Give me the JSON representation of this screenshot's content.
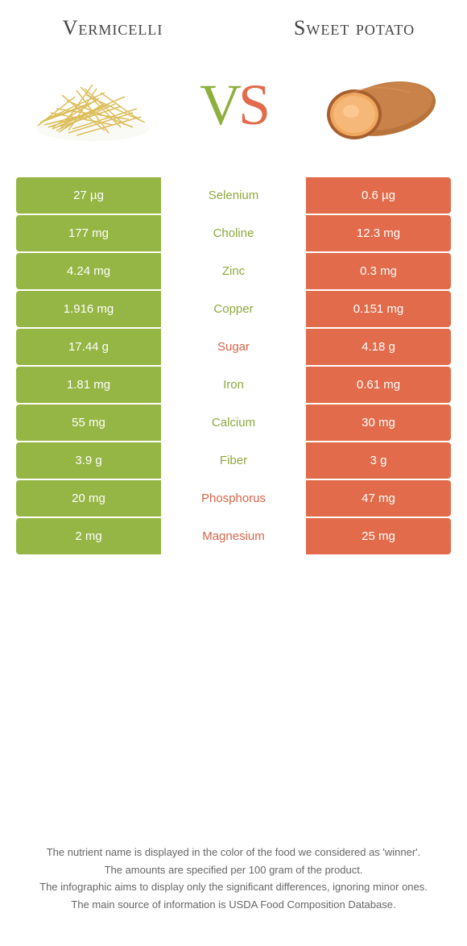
{
  "header": {
    "left_title": "Vermicelli",
    "right_title": "Sweet potato",
    "vs_v": "V",
    "vs_s": "S"
  },
  "colors": {
    "left": "#95b544",
    "right": "#e16b4a",
    "left_text": "#8fa83e",
    "right_text": "#d8654a"
  },
  "rows": [
    {
      "left": "27 µg",
      "name": "Selenium",
      "right": "0.6 µg",
      "winner": "left"
    },
    {
      "left": "177 mg",
      "name": "Choline",
      "right": "12.3 mg",
      "winner": "left"
    },
    {
      "left": "4.24 mg",
      "name": "Zinc",
      "right": "0.3 mg",
      "winner": "left"
    },
    {
      "left": "1.916 mg",
      "name": "Copper",
      "right": "0.151 mg",
      "winner": "left"
    },
    {
      "left": "17.44 g",
      "name": "Sugar",
      "right": "4.18 g",
      "winner": "right"
    },
    {
      "left": "1.81 mg",
      "name": "Iron",
      "right": "0.61 mg",
      "winner": "left"
    },
    {
      "left": "55 mg",
      "name": "Calcium",
      "right": "30 mg",
      "winner": "left"
    },
    {
      "left": "3.9 g",
      "name": "Fiber",
      "right": "3 g",
      "winner": "left"
    },
    {
      "left": "20 mg",
      "name": "Phosphorus",
      "right": "47 mg",
      "winner": "right"
    },
    {
      "left": "2 mg",
      "name": "Magnesium",
      "right": "25 mg",
      "winner": "right"
    }
  ],
  "footer": {
    "line1": "The nutrient name is displayed in the color of the food we considered as 'winner'.",
    "line2": "The amounts are specified per 100 gram of the product.",
    "line3": "The infographic aims to display only the significant differences, ignoring minor ones.",
    "line4": "The main source of information is USDA Food Composition Database."
  }
}
